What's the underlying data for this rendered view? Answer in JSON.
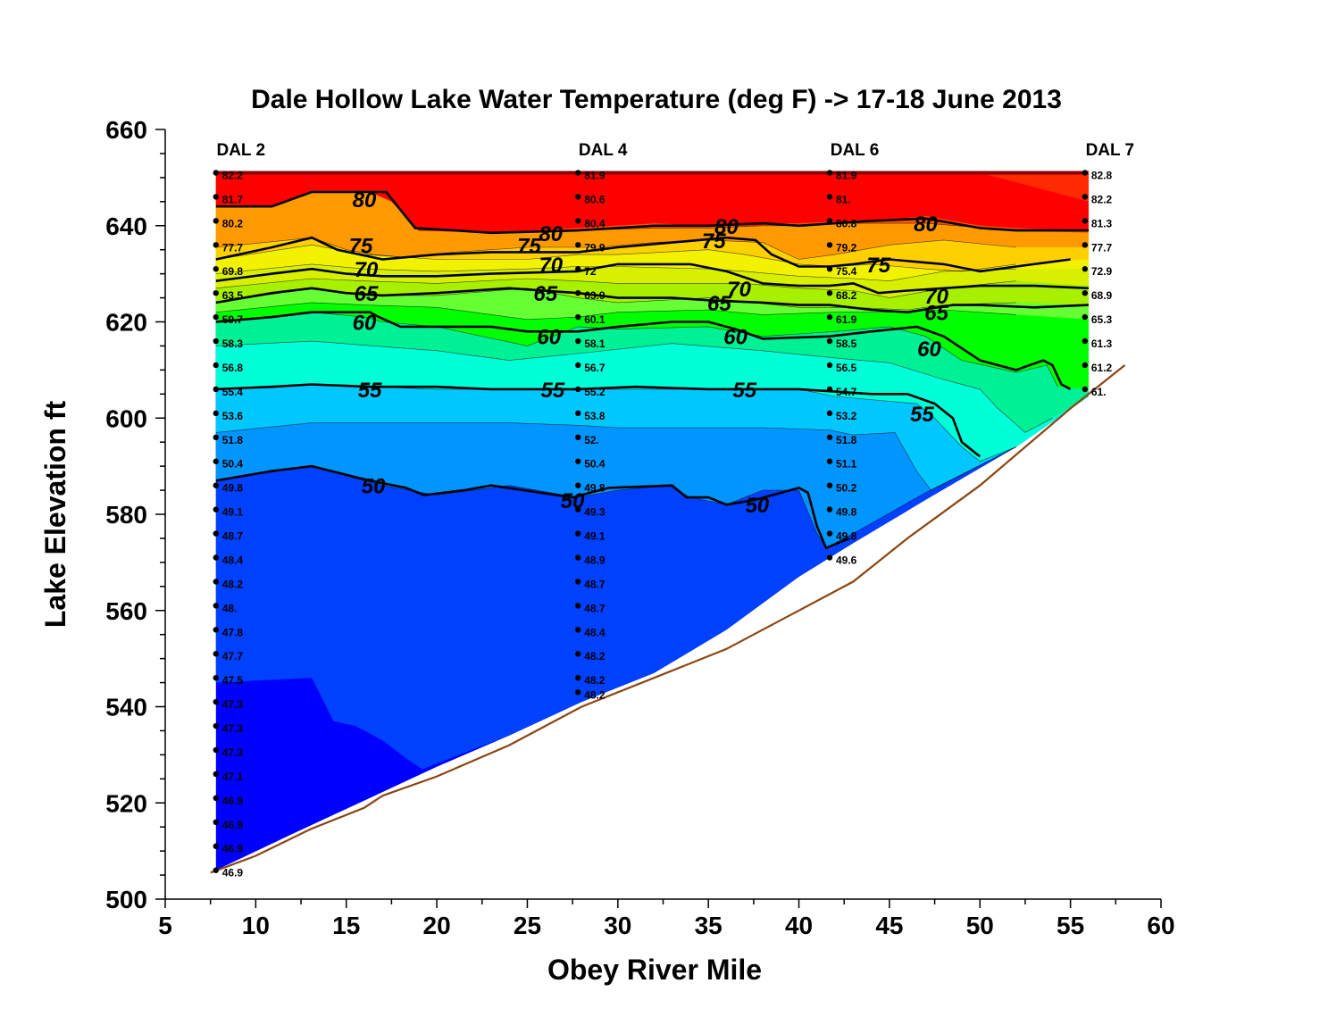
{
  "chart_data": {
    "type": "contour",
    "title": "Dale Hollow Lake Water Temperature (deg F)  ->  17-18 June 2013",
    "xlabel": "Obey  River  Mile",
    "ylabel": "Lake  Elevation  ft",
    "xlim": [
      5,
      60
    ],
    "ylim": [
      500,
      660
    ],
    "x_ticks": [
      "5",
      "10",
      "15",
      "20",
      "25",
      "30",
      "35",
      "40",
      "45",
      "50",
      "55",
      "60"
    ],
    "y_ticks": [
      "500",
      "520",
      "540",
      "560",
      "580",
      "600",
      "620",
      "640",
      "660"
    ],
    "surface_elevation": 651,
    "band_colors": {
      "lt47.5": "#0000FF",
      "47.5-50": "#0040FF",
      "50-52.5": "#0095FF",
      "52.5-55": "#00C8FF",
      "55-57.5": "#00FFD9",
      "57.5-60": "#00F096",
      "60-62.5": "#00FF00",
      "62.5-65": "#66FF33",
      "65-67.5": "#A6F000",
      "67.5-70": "#D8F000",
      "70-72.5": "#F2F200",
      "72.5-75": "#FFD000",
      "75-77.5": "#FF9900",
      "77.5-80": "#FF5500",
      "gt80": "#FF0000"
    },
    "stations": [
      {
        "name": "DAL 2",
        "x": 7.8,
        "bottom": 506,
        "obs": [
          {
            "e": 651,
            "v": "82.2"
          },
          {
            "e": 646,
            "v": "81.7"
          },
          {
            "e": 641,
            "v": "80.2"
          },
          {
            "e": 636,
            "v": "77.7"
          },
          {
            "e": 631,
            "v": "69.8"
          },
          {
            "e": 626,
            "v": "63.5"
          },
          {
            "e": 621,
            "v": "59.7"
          },
          {
            "e": 616,
            "v": "58.3"
          },
          {
            "e": 611,
            "v": "56.8"
          },
          {
            "e": 606,
            "v": "55.4"
          },
          {
            "e": 601,
            "v": "53.6"
          },
          {
            "e": 596,
            "v": "51.8"
          },
          {
            "e": 591,
            "v": "50.4"
          },
          {
            "e": 586,
            "v": "49.8"
          },
          {
            "e": 581,
            "v": "49.1"
          },
          {
            "e": 576,
            "v": "48.7"
          },
          {
            "e": 571,
            "v": "48.4"
          },
          {
            "e": 566,
            "v": "48.2"
          },
          {
            "e": 561,
            "v": "48."
          },
          {
            "e": 556,
            "v": "47.8"
          },
          {
            "e": 551,
            "v": "47.7"
          },
          {
            "e": 546,
            "v": "47.5"
          },
          {
            "e": 541,
            "v": "47.3"
          },
          {
            "e": 536,
            "v": "47.3"
          },
          {
            "e": 531,
            "v": "47.3"
          },
          {
            "e": 526,
            "v": "47.1"
          },
          {
            "e": 521,
            "v": "46.9"
          },
          {
            "e": 516,
            "v": "46.9"
          },
          {
            "e": 511,
            "v": "46.9"
          },
          {
            "e": 506,
            "v": "46.9"
          }
        ]
      },
      {
        "name": "DAL 4",
        "x": 27.8,
        "bottom": 543,
        "obs": [
          {
            "e": 651,
            "v": "81.9"
          },
          {
            "e": 646,
            "v": "80.6"
          },
          {
            "e": 641,
            "v": "80.4"
          },
          {
            "e": 636,
            "v": "79.9"
          },
          {
            "e": 631,
            "v": "72"
          },
          {
            "e": 626,
            "v": "63.9"
          },
          {
            "e": 621,
            "v": "60.1"
          },
          {
            "e": 616,
            "v": "58.1"
          },
          {
            "e": 611,
            "v": "56.7"
          },
          {
            "e": 606,
            "v": "55.2"
          },
          {
            "e": 601,
            "v": "53.8"
          },
          {
            "e": 596,
            "v": "52."
          },
          {
            "e": 591,
            "v": "50.4"
          },
          {
            "e": 586,
            "v": "49.8"
          },
          {
            "e": 581,
            "v": "49.3"
          },
          {
            "e": 576,
            "v": "49.1"
          },
          {
            "e": 571,
            "v": "48.9"
          },
          {
            "e": 566,
            "v": "48.7"
          },
          {
            "e": 561,
            "v": "48.7"
          },
          {
            "e": 556,
            "v": "48.4"
          },
          {
            "e": 551,
            "v": "48.2"
          },
          {
            "e": 546,
            "v": "48.2"
          },
          {
            "e": 543,
            "v": "48.2"
          }
        ]
      },
      {
        "name": "DAL 6",
        "x": 41.7,
        "bottom": 571,
        "obs": [
          {
            "e": 651,
            "v": "81.9"
          },
          {
            "e": 646,
            "v": "81."
          },
          {
            "e": 641,
            "v": "80.8"
          },
          {
            "e": 636,
            "v": "79.2"
          },
          {
            "e": 631,
            "v": "75.4"
          },
          {
            "e": 626,
            "v": "68.2"
          },
          {
            "e": 621,
            "v": "61.9"
          },
          {
            "e": 616,
            "v": "58.5"
          },
          {
            "e": 611,
            "v": "56.5"
          },
          {
            "e": 606,
            "v": "54.7"
          },
          {
            "e": 601,
            "v": "53.2"
          },
          {
            "e": 596,
            "v": "51.8"
          },
          {
            "e": 591,
            "v": "51.1"
          },
          {
            "e": 586,
            "v": "50.2"
          },
          {
            "e": 581,
            "v": "49.8"
          },
          {
            "e": 576,
            "v": "49.8"
          },
          {
            "e": 571,
            "v": "49.6"
          }
        ]
      },
      {
        "name": "DAL 7",
        "x": 55.8,
        "bottom": 606,
        "obs": [
          {
            "e": 651,
            "v": "82.8"
          },
          {
            "e": 646,
            "v": "82.2"
          },
          {
            "e": 641,
            "v": "81.3"
          },
          {
            "e": 636,
            "v": "77.7"
          },
          {
            "e": 631,
            "v": "72.9"
          },
          {
            "e": 626,
            "v": "68.9"
          },
          {
            "e": 621,
            "v": "65.3"
          },
          {
            "e": 616,
            "v": "61.3"
          },
          {
            "e": 611,
            "v": "61.2"
          },
          {
            "e": 606,
            "v": "61."
          }
        ]
      }
    ],
    "bottom_profile": [
      [
        7.5,
        505.5
      ],
      [
        10,
        509
      ],
      [
        13,
        514.5
      ],
      [
        16,
        519
      ],
      [
        17,
        521.5
      ],
      [
        20,
        525.5
      ],
      [
        24,
        532
      ],
      [
        28,
        540
      ],
      [
        32,
        546
      ],
      [
        36,
        552
      ],
      [
        40,
        560
      ],
      [
        43,
        566
      ],
      [
        46,
        575
      ],
      [
        50,
        586
      ],
      [
        55,
        602
      ],
      [
        58,
        611
      ]
    ],
    "contour_labels": [
      {
        "v": "80",
        "x": 16.0,
        "e": 645.5
      },
      {
        "v": "80",
        "x": 26.3,
        "e": 638.5
      },
      {
        "v": "80",
        "x": 36.0,
        "e": 640
      },
      {
        "v": "80",
        "x": 47.0,
        "e": 640.5
      },
      {
        "v": "75",
        "x": 15.8,
        "e": 636
      },
      {
        "v": "75",
        "x": 25.1,
        "e": 636
      },
      {
        "v": "75",
        "x": 35.3,
        "e": 637
      },
      {
        "v": "75",
        "x": 44.4,
        "e": 632
      },
      {
        "v": "70",
        "x": 16.1,
        "e": 631
      },
      {
        "v": "70",
        "x": 26.3,
        "e": 632
      },
      {
        "v": "70",
        "x": 36.7,
        "e": 627
      },
      {
        "v": "70",
        "x": 47.6,
        "e": 625.5
      },
      {
        "v": "65",
        "x": 16.1,
        "e": 626
      },
      {
        "v": "65",
        "x": 26.0,
        "e": 626
      },
      {
        "v": "65",
        "x": 35.6,
        "e": 624
      },
      {
        "v": "65",
        "x": 47.6,
        "e": 622
      },
      {
        "v": "60",
        "x": 16.0,
        "e": 620
      },
      {
        "v": "60",
        "x": 26.2,
        "e": 617
      },
      {
        "v": "60",
        "x": 36.5,
        "e": 617
      },
      {
        "v": "60",
        "x": 47.2,
        "e": 614.5
      },
      {
        "v": "55",
        "x": 16.3,
        "e": 606
      },
      {
        "v": "55",
        "x": 26.4,
        "e": 606
      },
      {
        "v": "55",
        "x": 37.0,
        "e": 606
      },
      {
        "v": "55",
        "x": 46.8,
        "e": 601
      },
      {
        "v": "50",
        "x": 16.5,
        "e": 586
      },
      {
        "v": "50",
        "x": 27.5,
        "e": 583
      },
      {
        "v": "50",
        "x": 37.7,
        "e": 582
      }
    ]
  }
}
